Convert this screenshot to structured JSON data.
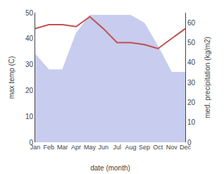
{
  "chart_data": {
    "type": "area",
    "categories": [
      "Jan",
      "Feb",
      "Mar",
      "Apr",
      "May",
      "Jun",
      "Jul",
      "Aug",
      "Sep",
      "Oct",
      "Nov",
      "Dec"
    ],
    "xlabel": "date (month)",
    "ylabel": "max temp (C)",
    "y2label": "med. precipitation (kg/m2)",
    "series": [
      {
        "type": "area",
        "color": "#c8ccee",
        "values": [
          34,
          28,
          28,
          42,
          49,
          49,
          49,
          49,
          46,
          37,
          27,
          27
        ]
      },
      {
        "type": "line",
        "color": "#c05050",
        "axis": "y2",
        "values": [
          57,
          59,
          59,
          58,
          63,
          57,
          50,
          50,
          49,
          47,
          52,
          57
        ]
      }
    ],
    "ylim": [
      0,
      50
    ],
    "yticks": [
      0,
      10,
      20,
      30,
      40,
      50
    ],
    "y2lim": [
      0,
      65
    ],
    "y2ticks": [
      0,
      10,
      20,
      30,
      40,
      50,
      60
    ],
    "grid": false
  }
}
